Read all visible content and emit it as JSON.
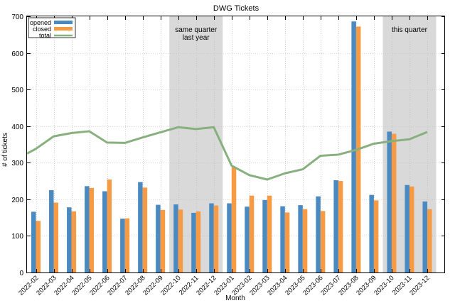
{
  "chart_data": {
    "type": "bar",
    "title": "DWG Tickets",
    "xlabel": "Month",
    "ylabel": "# of tickets",
    "ylim": [
      0,
      700
    ],
    "yticks": [
      0,
      100,
      200,
      300,
      400,
      500,
      600,
      700
    ],
    "grid": true,
    "legend_position": "top-left",
    "categories": [
      "2022-02",
      "2022-03",
      "2022-04",
      "2022-05",
      "2022-06",
      "2022-07",
      "2022-08",
      "2022-09",
      "2022-10",
      "2022-11",
      "2022-12",
      "2023-01",
      "2023-02",
      "2023-03",
      "2023-04",
      "2023-05",
      "2023-06",
      "2023-07",
      "2023-08",
      "2023-09",
      "2023-10",
      "2023-11",
      "2023-12"
    ],
    "series": [
      {
        "name": "opened",
        "kind": "bar",
        "color": "#4a8ac0",
        "values": [
          166,
          225,
          178,
          236,
          222,
          147,
          247,
          185,
          186,
          163,
          189,
          189,
          180,
          198,
          181,
          184,
          208,
          252,
          686,
          212,
          385,
          239,
          194
        ]
      },
      {
        "name": "closed",
        "kind": "bar",
        "color": "#f79a44",
        "values": [
          141,
          191,
          167,
          231,
          254,
          148,
          232,
          171,
          172,
          167,
          183,
          289,
          210,
          210,
          164,
          173,
          168,
          250,
          672,
          197,
          379,
          235,
          173
        ]
      },
      {
        "name": "total",
        "kind": "line",
        "color": "#88b07e",
        "values": [
          338,
          372,
          381,
          386,
          355,
          354,
          369,
          383,
          397,
          392,
          397,
          292,
          266,
          254,
          271,
          282,
          319,
          322,
          335,
          352,
          359,
          364,
          384
        ],
        "start_value": 325
      }
    ],
    "highlights": [
      {
        "label": "same quarter last year",
        "lines": [
          "same quarter",
          "last year"
        ],
        "from": "2022-10",
        "to": "2022-12",
        "color": "#d9d9d9"
      },
      {
        "label": "this quarter",
        "lines": [
          "this quarter"
        ],
        "from": "2023-10",
        "to": "2023-12",
        "color": "#d9d9d9"
      }
    ]
  }
}
